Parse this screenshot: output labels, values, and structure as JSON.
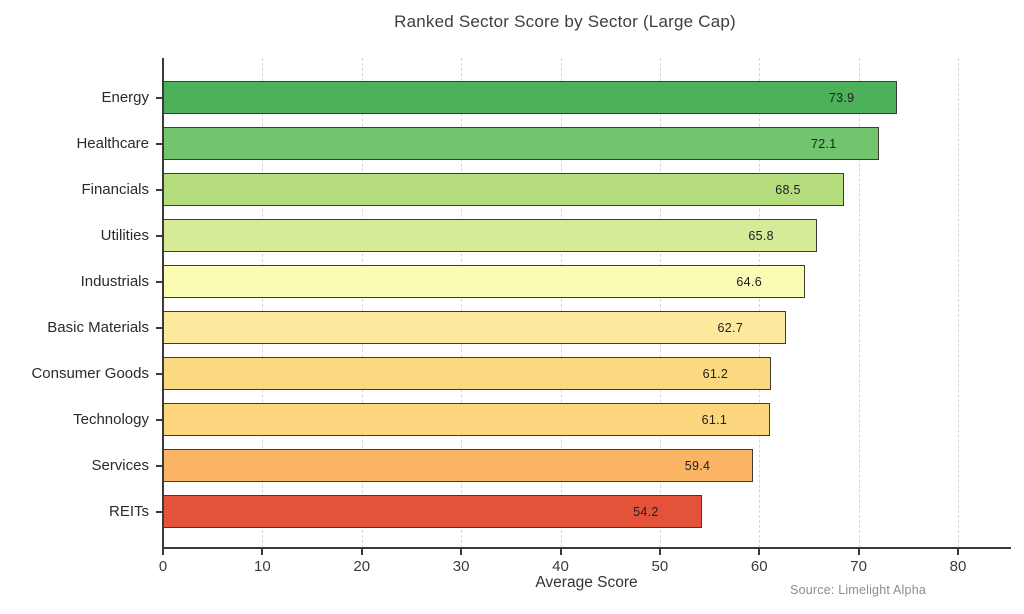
{
  "chart_data": {
    "type": "bar",
    "orientation": "horizontal",
    "title": "Ranked Sector Score by Sector (Large Cap)",
    "xlabel": "Average Score",
    "ylabel": "",
    "source": "Source: Limelight Alpha",
    "xlim": [
      0,
      85
    ],
    "xticks": [
      0,
      10,
      20,
      30,
      40,
      50,
      60,
      70,
      80
    ],
    "grid": "vertical-dashed",
    "legend": "none",
    "categories": [
      "Energy",
      "Healthcare",
      "Financials",
      "Utilities",
      "Industrials",
      "Basic Materials",
      "Consumer Goods",
      "Technology",
      "Services",
      "REITs"
    ],
    "values": [
      73.9,
      72.1,
      68.5,
      65.8,
      64.6,
      62.7,
      61.2,
      61.1,
      59.4,
      54.2
    ],
    "value_labels": [
      "73.9",
      "72.1",
      "68.5",
      "65.8",
      "64.6",
      "62.7",
      "61.2",
      "61.1",
      "59.4",
      "54.2"
    ],
    "bar_colors": [
      "#4db05a",
      "#72c46e",
      "#b5dd7e",
      "#d6eb98",
      "#fbfcb4",
      "#fde99e",
      "#fcd980",
      "#fcd67e",
      "#fbb463",
      "#e4523a"
    ],
    "bar_edge_color": "#3c3c30",
    "axis_color": "#3a3a3a",
    "grid_color": "#d6d6d6",
    "title_color": "#3f3f3f",
    "label_color": "#2b2b2b",
    "source_color": "#8d8d8d"
  }
}
